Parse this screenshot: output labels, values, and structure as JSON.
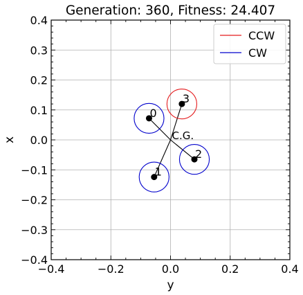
{
  "chart_data": {
    "type": "scatter",
    "title": "Generation: 360, Fitness: 24.407",
    "xlabel": "y",
    "ylabel": "x",
    "xlim": [
      -0.4,
      0.4
    ],
    "ylim": [
      -0.4,
      0.4
    ],
    "xticks": [
      -0.4,
      -0.2,
      0.0,
      0.2,
      0.4
    ],
    "yticks": [
      -0.4,
      -0.3,
      -0.2,
      -0.1,
      0.0,
      0.1,
      0.2,
      0.3,
      0.4
    ],
    "xtick_labels": [
      "−0.4",
      "−0.2",
      "0.0",
      "0.2",
      "0.4"
    ],
    "ytick_labels": [
      "−0.4",
      "−0.3",
      "−0.2",
      "−0.1",
      "0.0",
      "0.1",
      "0.2",
      "0.3",
      "0.4"
    ],
    "grid": true,
    "legend_position": "top-right",
    "legend": [
      {
        "name": "CCW",
        "color": "#e41a1c"
      },
      {
        "name": "CW",
        "color": "#0000cc"
      }
    ],
    "cg": {
      "label": "C.G.",
      "x": 0.0,
      "y": 0.0
    },
    "rotor_radius": 0.05,
    "motors": [
      {
        "id": "0",
        "x": -0.072,
        "y": 0.072,
        "direction": "CW"
      },
      {
        "id": "1",
        "x": -0.055,
        "y": -0.124,
        "direction": "CW"
      },
      {
        "id": "2",
        "x": 0.08,
        "y": -0.065,
        "direction": "CW"
      },
      {
        "id": "3",
        "x": 0.038,
        "y": 0.12,
        "direction": "CCW"
      }
    ]
  }
}
